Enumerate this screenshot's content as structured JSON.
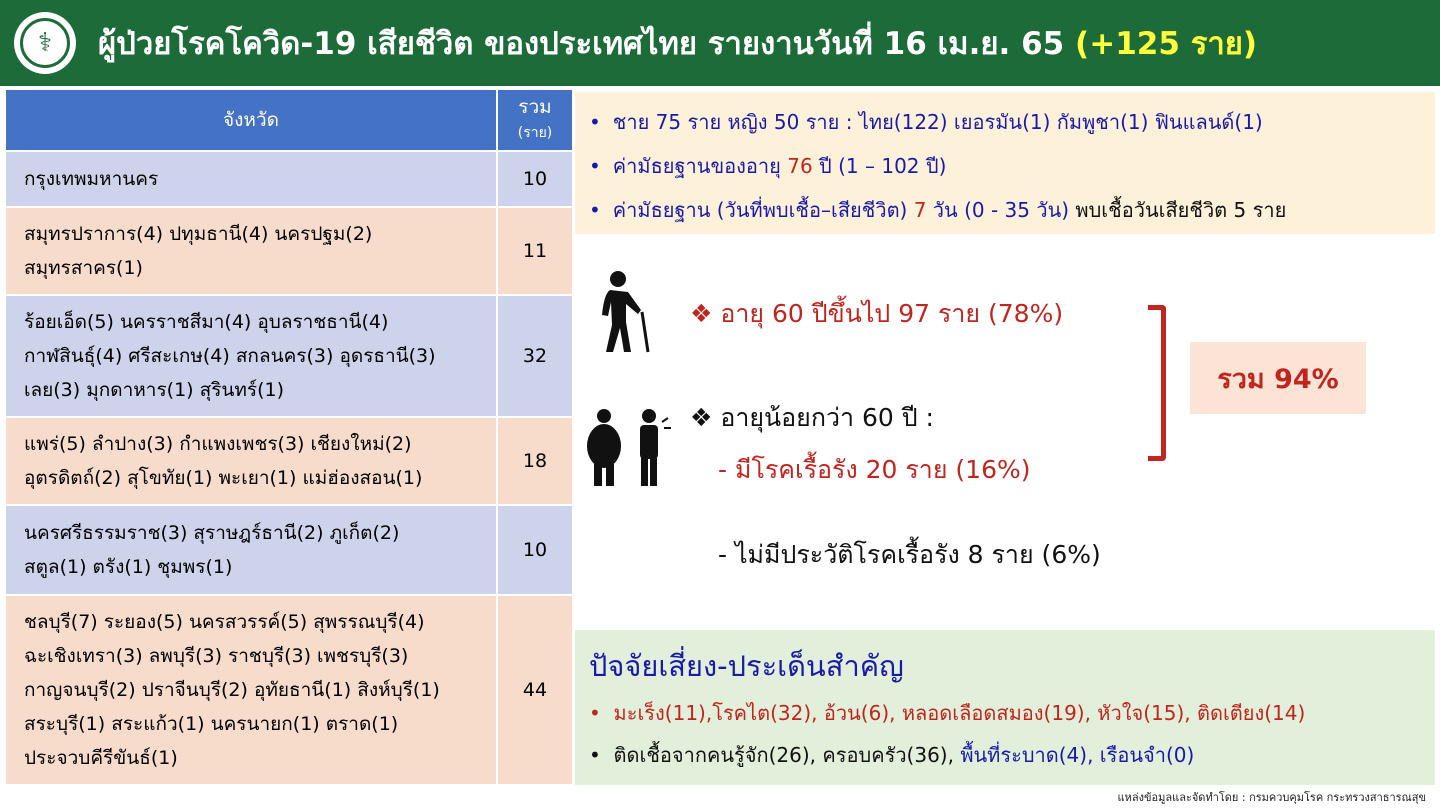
{
  "header": {
    "title": "ผู้ป่วยโรคโควิด-19 เสียชีวิต ของประเทศไทย รายงานวันที่ 16 เม.ย. 65",
    "highlight": "(+125 ราย)",
    "logo_icon": "ministry-of-public-health-logo"
  },
  "table": {
    "col_province": "จังหวัด",
    "col_total": "รวม",
    "col_total_unit": "(ราย)",
    "rows": [
      {
        "lines": [
          "กรุงเทพมหานคร"
        ],
        "total": "10"
      },
      {
        "lines": [
          "สมุทรปราการ(4) ปทุมธานี(4) นครปฐม(2)",
          "สมุทรสาคร(1)"
        ],
        "total": "11"
      },
      {
        "lines": [
          "ร้อยเอ็ด(5) นครราชสีมา(4) อุบลราชธานี(4)",
          "กาฬสินธุ์(4) ศรีสะเกษ(4) สกลนคร(3) อุดรธานี(3)",
          "เลย(3) มุกดาหาร(1) สุรินทร์(1)"
        ],
        "total": "32"
      },
      {
        "lines": [
          "แพร่(5) ลำปาง(3) กำแพงเพชร(3) เชียงใหม่(2)",
          "อุตรดิตถ์(2) สุโขทัย(1) พะเยา(1) แม่ฮ่องสอน(1)"
        ],
        "total": "18"
      },
      {
        "lines": [
          "นครศรีธรรมราช(3) สุราษฎร์ธานี(2) ภูเก็ต(2)",
          "สตูล(1) ตรัง(1) ชุมพร(1)"
        ],
        "total": "10"
      },
      {
        "lines": [
          "ชลบุรี(7) ระยอง(5) นครสวรรค์(5) สุพรรณบุรี(4)",
          "ฉะเชิงเทรา(3) ลพบุรี(3) ราชบุรี(3) เพชรบุรี(3)",
          "กาญจนบุรี(2) ปราจีนบุรี(2) อุทัยธานี(1) สิงห์บุรี(1)",
          "สระบุรี(1) สระแก้ว(1) นครนายก(1) ตราด(1)",
          "ประจวบคีรีขันธ์(1)"
        ],
        "total": "44"
      }
    ]
  },
  "summary": {
    "line1": "ชาย 75 ราย หญิง 50 ราย : ไทย(122) เยอรมัน(1) กัมพูชา(1) ฟินแลนด์(1)",
    "line2_a": "ค่ามัธยฐานของอายุ ",
    "line2_val": "76",
    "line2_b": " ปี (1 – 102 ปี)",
    "line3_a": "ค่ามัธยฐาน (วันที่พบเชื้อ–เสียชีวิต) ",
    "line3_val": "7",
    "line3_b": " วัน (0 - 35 วัน) ",
    "line3_c": "พบเชื้อวันเสียชีวิต 5 ราย"
  },
  "age": {
    "over60": "อายุ 60 ปีขึ้นไป 97 ราย (78%)",
    "under60": "อายุน้อยกว่า 60 ปี :",
    "chronic": "- มีโรคเรื้อรัง 20 ราย (16%)",
    "no_chronic": "- ไม่มีประวัติโรคเรื้อรัง 8 ราย (6%)",
    "total": "รวม 94%"
  },
  "risk": {
    "title": "ปัจจัยเสี่ยง-ประเด็นสำคัญ",
    "line1": "มะเร็ง(11),โรคไต(32), อ้วน(6), หลอดเลือดสมอง(19), หัวใจ(15), ติดเตียง(14)",
    "line2_a": "ติดเชื้อจากคนรู้จัก(26), ครอบครัว(36), ",
    "line2_b": "พื้นที่ระบาด(4), เรือนจำ(0)"
  },
  "source": "แหล่งข้อมูลและจัดทำโดย : กรมควบคุมโรค กระทรวงสาธารณสุข",
  "colors": {
    "header": "#1d6b38",
    "highlight": "#ffff3c",
    "table_header": "#4472c4",
    "red": "#c0261e",
    "blue": "#1a1aa8"
  }
}
